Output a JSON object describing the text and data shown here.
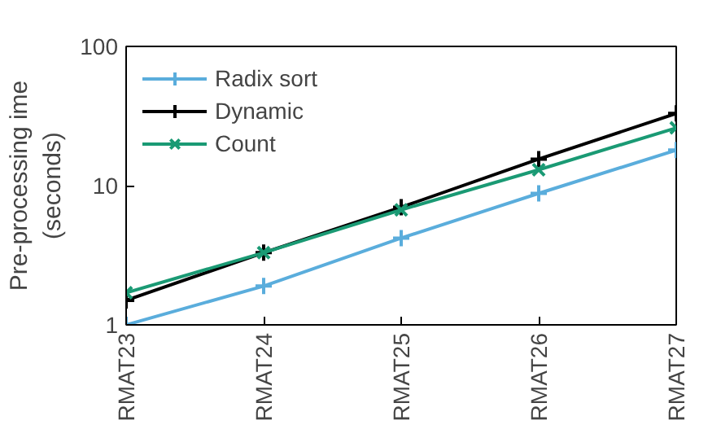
{
  "chart_data": {
    "type": "line",
    "ylabel": "Pre-processing ime\n(seconds)",
    "categories": [
      "RMAT23",
      "RMAT24",
      "RMAT25",
      "RMAT26",
      "RMAT27"
    ],
    "log": true,
    "ylim": [
      1,
      100
    ],
    "yticks": [
      1,
      10,
      100
    ],
    "grid": false,
    "legend": "top left",
    "series": [
      {
        "name": "Radix sort",
        "color": "#5aaddc",
        "marker": "cross",
        "values": [
          1.0,
          1.9,
          4.2,
          8.8,
          18
        ]
      },
      {
        "name": "Dynamic",
        "color": "#000000",
        "marker": "cross",
        "values": [
          1.5,
          3.3,
          7,
          15.5,
          33
        ]
      },
      {
        "name": "Count",
        "color": "#1a9a74",
        "marker": "x",
        "values": [
          1.7,
          3.3,
          6.7,
          13,
          26
        ]
      }
    ]
  }
}
